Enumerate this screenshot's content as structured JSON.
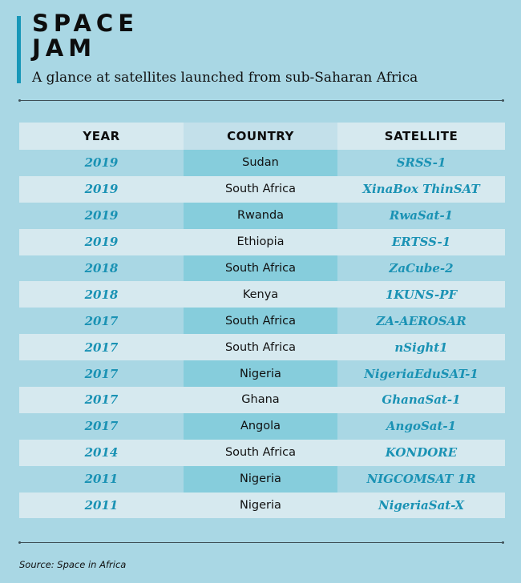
{
  "header": {
    "title_line1": "SPACE",
    "title_line2": "JAM",
    "subtitle": "A glance at satellites launched from sub-Saharan Africa"
  },
  "table": {
    "columns": [
      "YEAR",
      "COUNTRY",
      "SATELLITE"
    ],
    "rows": [
      {
        "year": "2019",
        "country": "Sudan",
        "satellite": "SRSS-1"
      },
      {
        "year": "2019",
        "country": "South Africa",
        "satellite": "XinaBox ThinSAT"
      },
      {
        "year": "2019",
        "country": "Rwanda",
        "satellite": "RwaSat-1"
      },
      {
        "year": "2019",
        "country": "Ethiopia",
        "satellite": "ERTSS-1"
      },
      {
        "year": "2018",
        "country": "South Africa",
        "satellite": "ZaCube-2"
      },
      {
        "year": "2018",
        "country": "Kenya",
        "satellite": "1KUNS-PF"
      },
      {
        "year": "2017",
        "country": "South Africa",
        "satellite": "ZA-AEROSAR"
      },
      {
        "year": "2017",
        "country": "South Africa",
        "satellite": "nSight1"
      },
      {
        "year": "2017",
        "country": "Nigeria",
        "satellite": "NigeriaEduSAT-1"
      },
      {
        "year": "2017",
        "country": "Ghana",
        "satellite": "GhanaSat-1"
      },
      {
        "year": "2017",
        "country": "Angola",
        "satellite": "AngoSat-1"
      },
      {
        "year": "2014",
        "country": "South Africa",
        "satellite": "KONDORE"
      },
      {
        "year": "2011",
        "country": "Nigeria",
        "satellite": "NIGCOMSAT 1R"
      },
      {
        "year": "2011",
        "country": "Nigeria",
        "satellite": "NigeriaSat-X"
      }
    ]
  },
  "footer": {
    "source": "Source: Space in Africa"
  },
  "colors": {
    "background": "#a9d7e4",
    "accent": "#1797b8",
    "band_row": "#d6e9ef",
    "country_highlight": "#86cddc"
  }
}
